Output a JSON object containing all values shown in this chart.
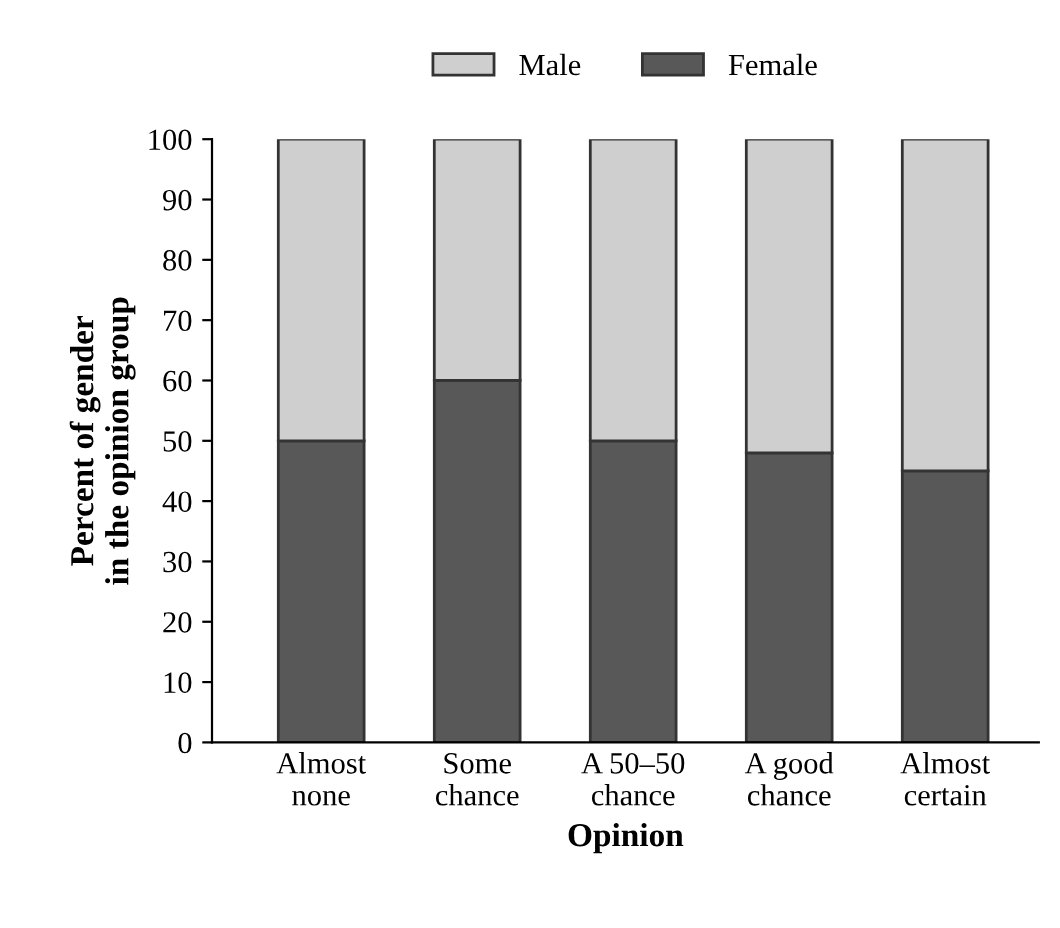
{
  "chart_data": {
    "type": "bar",
    "stacked": true,
    "categories": [
      "Almost\nnone",
      "Some\nchance",
      "A 50–50\nchance",
      "A good\nchance",
      "Almost\ncertain"
    ],
    "series": [
      {
        "name": "Female",
        "color": "#585858",
        "values": [
          50,
          60,
          50,
          48,
          45
        ]
      },
      {
        "name": "Male",
        "color": "#cfcfcf",
        "values": [
          50,
          40,
          50,
          52,
          55
        ]
      }
    ],
    "xlabel": "Opinion",
    "ylabel": "Percent of gender\nin the opinion group",
    "ylim": [
      0,
      100
    ],
    "yticks": [
      0,
      10,
      20,
      30,
      40,
      50,
      60,
      70,
      80,
      90,
      100
    ],
    "grid": false,
    "legend": "top"
  }
}
